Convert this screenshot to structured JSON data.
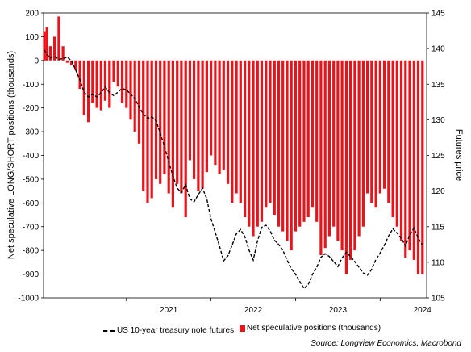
{
  "chart_data": {
    "type": "bar+line",
    "ylabel_left": "Net speculative LONG/SHORT positions (thousands)",
    "ylabel_right": "Futures price",
    "yticks_left": [
      "200",
      "100",
      "0",
      "-100",
      "-200",
      "-300",
      "-400",
      "-500",
      "-600",
      "-700",
      "-800",
      "-900",
      "-1000"
    ],
    "ylim_left": [
      -1000,
      200
    ],
    "yticks_right": [
      "145",
      "140",
      "135",
      "130",
      "125",
      "120",
      "115",
      "110",
      "105"
    ],
    "ylim_right": [
      105,
      145
    ],
    "xticks": [
      "2021",
      "2022",
      "2023",
      "2024"
    ],
    "xlim": [
      2020.02,
      2024.55
    ],
    "grid": false,
    "legend_position": "bottom",
    "series": [
      {
        "name": "US 10-year treasury note futures",
        "kind": "line",
        "style": "dashed",
        "color": "#000000",
        "x": [
          2020.03,
          2020.06,
          2020.1,
          2020.15,
          2020.2,
          2020.25,
          2020.3,
          2020.35,
          2020.4,
          2020.45,
          2020.5,
          2020.55,
          2020.6,
          2020.65,
          2020.7,
          2020.75,
          2020.8,
          2020.85,
          2020.9,
          2020.95,
          2021.0,
          2021.05,
          2021.1,
          2021.15,
          2021.2,
          2021.25,
          2021.3,
          2021.35,
          2021.4,
          2021.45,
          2021.5,
          2021.55,
          2021.6,
          2021.65,
          2021.7,
          2021.75,
          2021.8,
          2021.85,
          2021.9,
          2021.95,
          2022.0,
          2022.05,
          2022.1,
          2022.15,
          2022.2,
          2022.25,
          2022.3,
          2022.35,
          2022.4,
          2022.45,
          2022.5,
          2022.55,
          2022.6,
          2022.65,
          2022.7,
          2022.75,
          2022.8,
          2022.85,
          2022.9,
          2022.95,
          2023.0,
          2023.05,
          2023.1,
          2023.15,
          2023.2,
          2023.25,
          2023.3,
          2023.35,
          2023.4,
          2023.45,
          2023.5,
          2023.55,
          2023.6,
          2023.65,
          2023.7,
          2023.75,
          2023.8,
          2023.85,
          2023.9,
          2023.95,
          2024.0,
          2024.05,
          2024.1,
          2024.15,
          2024.2,
          2024.25,
          2024.3,
          2024.35,
          2024.4,
          2024.45,
          2024.5
        ],
        "values": [
          139.8,
          139.2,
          138.7,
          138.9,
          138.5,
          138.6,
          138.8,
          138.3,
          137.0,
          135.6,
          133.9,
          133.2,
          133.6,
          133.2,
          133.8,
          134.6,
          133.8,
          133.4,
          133.9,
          134.4,
          134.2,
          133.6,
          133.0,
          131.8,
          130.8,
          130.2,
          130.4,
          129.9,
          128.1,
          126.3,
          124.1,
          122.1,
          120.4,
          119.8,
          120.9,
          118.9,
          118.5,
          119.5,
          120.4,
          118.9,
          116.1,
          114.2,
          112.3,
          110.2,
          110.9,
          112.4,
          114.0,
          114.6,
          113.6,
          111.7,
          110.3,
          113.0,
          114.9,
          115.2,
          114.4,
          113.1,
          112.5,
          111.7,
          110.3,
          109.1,
          108.3,
          107.3,
          106.3,
          106.9,
          108.3,
          109.3,
          110.7,
          111.2,
          110.8,
          110.1,
          109.4,
          110.6,
          111.4,
          110.8,
          110.1,
          109.3,
          108.5,
          108.2,
          109.0,
          110.4,
          111.3,
          112.4,
          113.7,
          114.7,
          114.1,
          113.4,
          112.3,
          113.9,
          114.8,
          113.4,
          112.4
        ]
      },
      {
        "name": "Net speculative positions (thousands)",
        "kind": "bar",
        "color": "#e8141b",
        "x": [
          2020.03,
          2020.06,
          2020.1,
          2020.15,
          2020.2,
          2020.25,
          2020.3,
          2020.35,
          2020.4,
          2020.45,
          2020.5,
          2020.55,
          2020.6,
          2020.65,
          2020.7,
          2020.75,
          2020.8,
          2020.85,
          2020.9,
          2020.95,
          2021.0,
          2021.05,
          2021.1,
          2021.15,
          2021.2,
          2021.25,
          2021.3,
          2021.35,
          2021.4,
          2021.45,
          2021.5,
          2021.55,
          2021.6,
          2021.65,
          2021.7,
          2021.75,
          2021.8,
          2021.85,
          2021.9,
          2021.95,
          2022.0,
          2022.05,
          2022.1,
          2022.15,
          2022.2,
          2022.25,
          2022.3,
          2022.35,
          2022.4,
          2022.45,
          2022.5,
          2022.55,
          2022.6,
          2022.65,
          2022.7,
          2022.75,
          2022.8,
          2022.85,
          2022.9,
          2022.95,
          2023.0,
          2023.05,
          2023.1,
          2023.15,
          2023.2,
          2023.25,
          2023.3,
          2023.35,
          2023.4,
          2023.45,
          2023.5,
          2023.55,
          2023.6,
          2023.65,
          2023.7,
          2023.75,
          2023.8,
          2023.85,
          2023.9,
          2023.95,
          2024.0,
          2024.05,
          2024.1,
          2024.15,
          2024.2,
          2024.25,
          2024.3,
          2024.35,
          2024.4,
          2024.45,
          2024.5
        ],
        "values": [
          120,
          140,
          60,
          100,
          185,
          60,
          -10,
          -20,
          -40,
          -120,
          -230,
          -260,
          -180,
          -200,
          -210,
          -170,
          -200,
          -90,
          -110,
          -180,
          -200,
          -250,
          -300,
          -350,
          -550,
          -600,
          -580,
          -500,
          -520,
          -480,
          -560,
          -620,
          -520,
          -560,
          -660,
          -420,
          -500,
          -550,
          -540,
          -470,
          -400,
          -440,
          -480,
          -460,
          -520,
          -600,
          -560,
          -600,
          -660,
          -700,
          -740,
          -700,
          -680,
          -620,
          -600,
          -650,
          -700,
          -720,
          -760,
          -800,
          -720,
          -700,
          -680,
          -660,
          -620,
          -680,
          -820,
          -790,
          -740,
          -700,
          -760,
          -800,
          -900,
          -840,
          -800,
          -740,
          -700,
          -560,
          -600,
          -620,
          -560,
          -540,
          -600,
          -660,
          -700,
          -760,
          -830,
          -800,
          -840,
          -900,
          -900
        ]
      }
    ]
  },
  "source": "Source: Longview Economics, Macrobond"
}
